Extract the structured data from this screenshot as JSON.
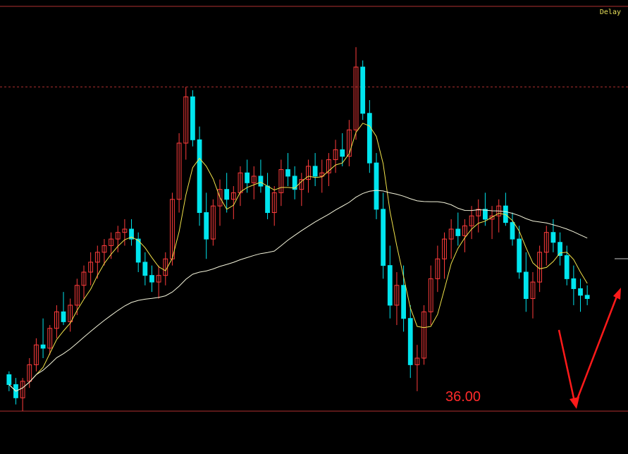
{
  "status": {
    "delay_label": "Delay"
  },
  "annotation": {
    "level_label": "36.00",
    "level_value": 36.0
  },
  "colors": {
    "background": "#000000",
    "up_candle": "#ff3c3c",
    "down_candle": "#00e5ee",
    "ma_short": "#f2e34a",
    "ma_long": "#f5f5dc",
    "grid_dashed": "#b03030",
    "arrow": "#ff1a1a"
  },
  "chart_data": {
    "type": "candlestick",
    "title": "",
    "xlabel": "",
    "ylabel": "",
    "ylim": [
      35.5,
      42.0
    ],
    "grid": false,
    "reference_lines": [
      {
        "value": 40.9,
        "style": "dashed"
      },
      {
        "value": 36.0,
        "style": "solid"
      }
    ],
    "series": [
      {
        "kind": "candles",
        "ohlc": [
          [
            36.55,
            36.6,
            36.3,
            36.4
          ],
          [
            36.4,
            36.5,
            36.1,
            36.2
          ],
          [
            36.2,
            36.5,
            36.0,
            36.45
          ],
          [
            36.45,
            36.8,
            36.35,
            36.7
          ],
          [
            36.7,
            37.1,
            36.6,
            37.0
          ],
          [
            37.0,
            37.4,
            36.8,
            36.95
          ],
          [
            36.95,
            37.3,
            36.85,
            37.25
          ],
          [
            37.25,
            37.6,
            37.1,
            37.5
          ],
          [
            37.5,
            37.8,
            37.3,
            37.35
          ],
          [
            37.35,
            37.7,
            37.2,
            37.6
          ],
          [
            37.6,
            38.0,
            37.45,
            37.9
          ],
          [
            37.9,
            38.2,
            37.7,
            38.1
          ],
          [
            38.1,
            38.4,
            37.9,
            38.25
          ],
          [
            38.25,
            38.5,
            38.0,
            38.4
          ],
          [
            38.4,
            38.6,
            38.2,
            38.5
          ],
          [
            38.5,
            38.7,
            38.3,
            38.6
          ],
          [
            38.6,
            38.8,
            38.4,
            38.7
          ],
          [
            38.7,
            38.9,
            38.5,
            38.75
          ],
          [
            38.75,
            38.9,
            38.5,
            38.6
          ],
          [
            38.6,
            38.7,
            38.1,
            38.25
          ],
          [
            38.25,
            38.4,
            37.9,
            38.05
          ],
          [
            38.05,
            38.2,
            37.8,
            37.95
          ],
          [
            37.95,
            38.2,
            37.7,
            38.05
          ],
          [
            38.05,
            38.4,
            37.9,
            38.3
          ],
          [
            38.3,
            39.3,
            38.2,
            39.2
          ],
          [
            39.2,
            40.2,
            39.0,
            40.05
          ],
          [
            40.05,
            40.9,
            39.8,
            40.75
          ],
          [
            40.75,
            40.85,
            40.0,
            40.1
          ],
          [
            40.1,
            40.3,
            38.8,
            39.0
          ],
          [
            39.0,
            39.3,
            38.3,
            38.6
          ],
          [
            38.6,
            39.2,
            38.5,
            39.1
          ],
          [
            39.1,
            39.5,
            38.8,
            39.35
          ],
          [
            39.35,
            39.6,
            39.0,
            39.2
          ],
          [
            39.2,
            39.4,
            38.9,
            39.3
          ],
          [
            39.3,
            39.7,
            39.1,
            39.6
          ],
          [
            39.6,
            39.8,
            39.3,
            39.45
          ],
          [
            39.45,
            39.7,
            39.2,
            39.55
          ],
          [
            39.55,
            39.8,
            39.3,
            39.4
          ],
          [
            39.4,
            39.6,
            38.9,
            39.0
          ],
          [
            39.0,
            39.4,
            38.8,
            39.3
          ],
          [
            39.3,
            39.8,
            39.1,
            39.65
          ],
          [
            39.65,
            39.9,
            39.4,
            39.55
          ],
          [
            39.55,
            39.7,
            39.2,
            39.35
          ],
          [
            39.35,
            39.6,
            39.1,
            39.5
          ],
          [
            39.5,
            39.8,
            39.3,
            39.7
          ],
          [
            39.7,
            39.9,
            39.4,
            39.55
          ],
          [
            39.55,
            39.8,
            39.3,
            39.6
          ],
          [
            39.6,
            39.9,
            39.4,
            39.8
          ],
          [
            39.8,
            40.1,
            39.6,
            39.95
          ],
          [
            39.95,
            40.2,
            39.7,
            39.85
          ],
          [
            39.85,
            40.4,
            39.7,
            40.25
          ],
          [
            40.25,
            41.5,
            40.1,
            41.2
          ],
          [
            41.2,
            41.3,
            40.4,
            40.5
          ],
          [
            40.5,
            40.7,
            39.6,
            39.75
          ],
          [
            39.75,
            39.9,
            38.9,
            39.05
          ],
          [
            39.05,
            39.3,
            38.0,
            38.2
          ],
          [
            38.2,
            38.5,
            37.4,
            37.6
          ],
          [
            37.6,
            38.1,
            37.3,
            37.9
          ],
          [
            37.9,
            38.2,
            37.2,
            37.4
          ],
          [
            37.4,
            37.6,
            36.5,
            36.7
          ],
          [
            36.7,
            37.0,
            36.3,
            36.8
          ],
          [
            36.8,
            37.6,
            36.7,
            37.5
          ],
          [
            37.5,
            38.2,
            37.3,
            38.0
          ],
          [
            38.0,
            38.5,
            37.8,
            38.3
          ],
          [
            38.3,
            38.7,
            38.0,
            38.6
          ],
          [
            38.6,
            38.9,
            38.3,
            38.75
          ],
          [
            38.75,
            39.0,
            38.5,
            38.65
          ],
          [
            38.65,
            38.9,
            38.4,
            38.8
          ],
          [
            38.8,
            39.1,
            38.6,
            38.95
          ],
          [
            38.95,
            39.2,
            38.7,
            39.05
          ],
          [
            39.05,
            39.3,
            38.8,
            38.9
          ],
          [
            38.9,
            39.1,
            38.6,
            38.95
          ],
          [
            38.95,
            39.2,
            38.7,
            39.1
          ],
          [
            39.1,
            39.3,
            38.8,
            38.85
          ],
          [
            38.85,
            39.0,
            38.5,
            38.6
          ],
          [
            38.6,
            38.8,
            38.0,
            38.1
          ],
          [
            38.1,
            38.4,
            37.5,
            37.7
          ],
          [
            37.7,
            38.1,
            37.4,
            37.95
          ],
          [
            37.95,
            38.5,
            37.8,
            38.4
          ],
          [
            38.4,
            38.8,
            38.2,
            38.7
          ],
          [
            38.7,
            38.9,
            38.4,
            38.55
          ],
          [
            38.55,
            38.7,
            38.2,
            38.35
          ],
          [
            38.35,
            38.5,
            37.9,
            38.0
          ],
          [
            38.0,
            38.2,
            37.6,
            37.85
          ],
          [
            37.85,
            38.0,
            37.5,
            37.75
          ],
          [
            37.75,
            37.9,
            37.6,
            37.7
          ]
        ]
      },
      {
        "kind": "ma",
        "name": "",
        "period": 5,
        "color_key": "ma_short"
      },
      {
        "kind": "ma",
        "name": "",
        "period": 40,
        "color_key": "ma_long"
      }
    ]
  }
}
